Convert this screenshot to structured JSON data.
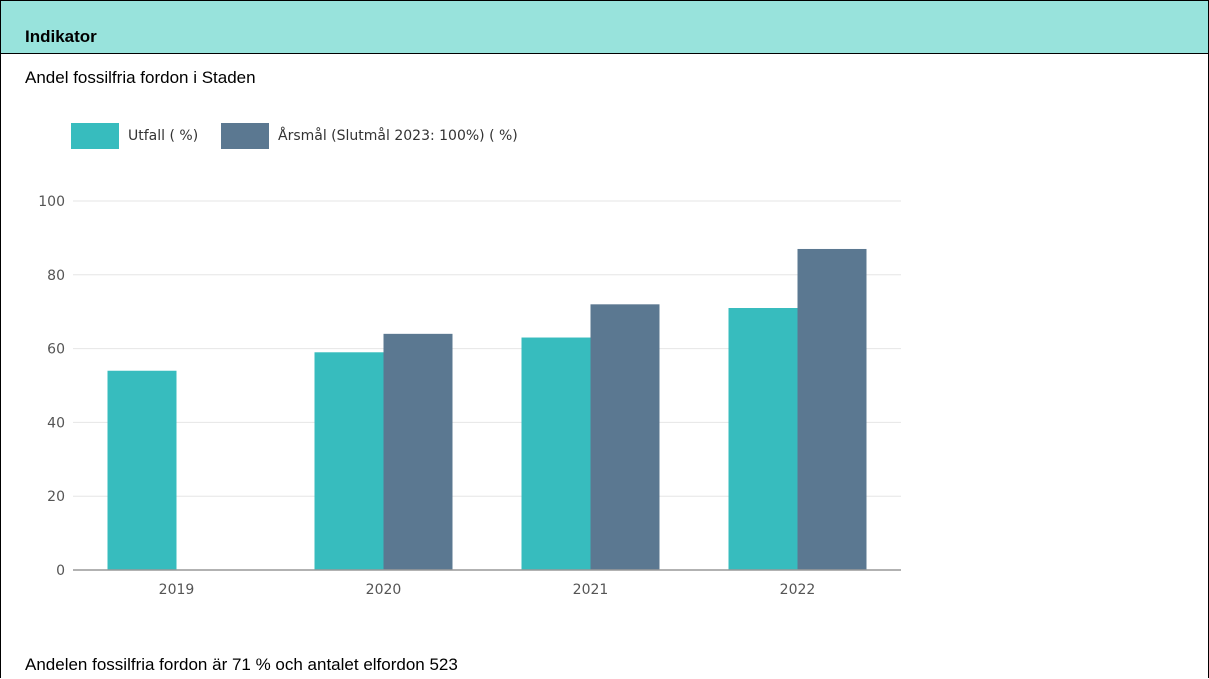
{
  "header": {
    "title": "Indikator"
  },
  "subtitle": "Andel fossilfria fordon i Staden",
  "footer": "Andelen fossilfria fordon är 71 % och antalet elfordon 523",
  "colors": {
    "utfall": "#37bcbe",
    "arsmal": "#5b7891",
    "grid": "#e6e6e6",
    "axis": "#999999"
  },
  "chart_data": {
    "type": "bar",
    "categories": [
      "2019",
      "2020",
      "2021",
      "2022"
    ],
    "series": [
      {
        "name": "Utfall ( %)",
        "values": [
          54,
          59,
          63,
          71
        ]
      },
      {
        "name": "Årsmål (Slutmål 2023: 100%) ( %)",
        "values": [
          null,
          64,
          72,
          87
        ]
      }
    ],
    "yticks": [
      0,
      20,
      40,
      60,
      80,
      100
    ],
    "ylim": [
      0,
      100
    ],
    "legend": "top-left",
    "grid": true
  }
}
